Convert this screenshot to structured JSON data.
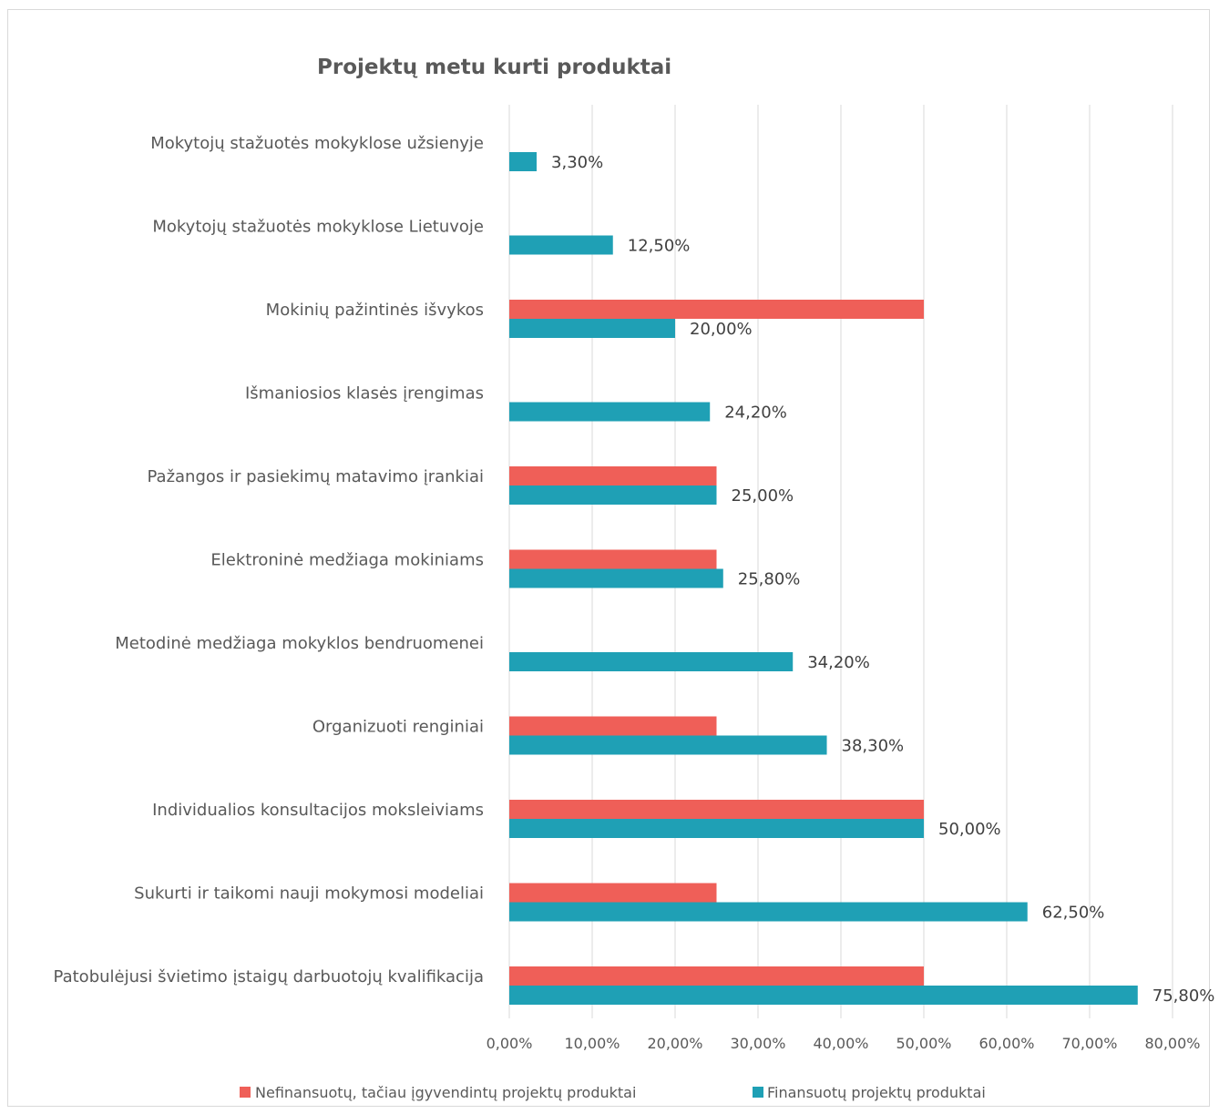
{
  "chart_data": {
    "type": "bar",
    "orientation": "horizontal",
    "title": "Projektų metu kurti produktai",
    "xlabel": "",
    "ylabel": "",
    "xlim": [
      0,
      80
    ],
    "x_ticks": [
      "0,00%",
      "10,00%",
      "20,00%",
      "30,00%",
      "40,00%",
      "50,00%",
      "60,00%",
      "70,00%",
      "80,00%"
    ],
    "x_tick_values": [
      0,
      10,
      20,
      30,
      40,
      50,
      60,
      70,
      80
    ],
    "grid": true,
    "legend_position": "bottom",
    "categories": [
      "Mokytojų stažuotės mokyklose užsienyje",
      "Mokytojų stažuotės mokyklose Lietuvoje",
      "Mokinių pažintinės išvykos",
      "Išmaniosios klasės įrengimas",
      "Pažangos ir pasiekimų matavimo įrankiai",
      "Elektroninė medžiaga mokiniams",
      "Metodinė medžiaga mokyklos bendruomenei",
      "Organizuoti renginiai",
      "Individualios konsultacijos moksleiviams",
      "Sukurti ir taikomi nauji mokymosi modeliai",
      "Patobulėjusi švietimo įstaigų darbuotojų kvalifikacija"
    ],
    "series": [
      {
        "name": "Nefinansuotų, tačiau įgyvendintų projektų produktai",
        "color": "#ef5f58",
        "values": [
          null,
          null,
          50,
          null,
          25,
          25,
          null,
          25,
          50,
          25,
          50
        ]
      },
      {
        "name": "Finansuotų projektų produktai",
        "color": "#1fa0b5",
        "values": [
          3.3,
          12.5,
          20.0,
          24.2,
          25.0,
          25.8,
          34.2,
          38.3,
          50.0,
          62.5,
          75.8
        ],
        "labels": [
          "3,30%",
          "12,50%",
          "20,00%",
          "24,20%",
          "25,00%",
          "25,80%",
          "34,20%",
          "38,30%",
          "50,00%",
          "62,50%",
          "75,80%"
        ]
      }
    ]
  }
}
